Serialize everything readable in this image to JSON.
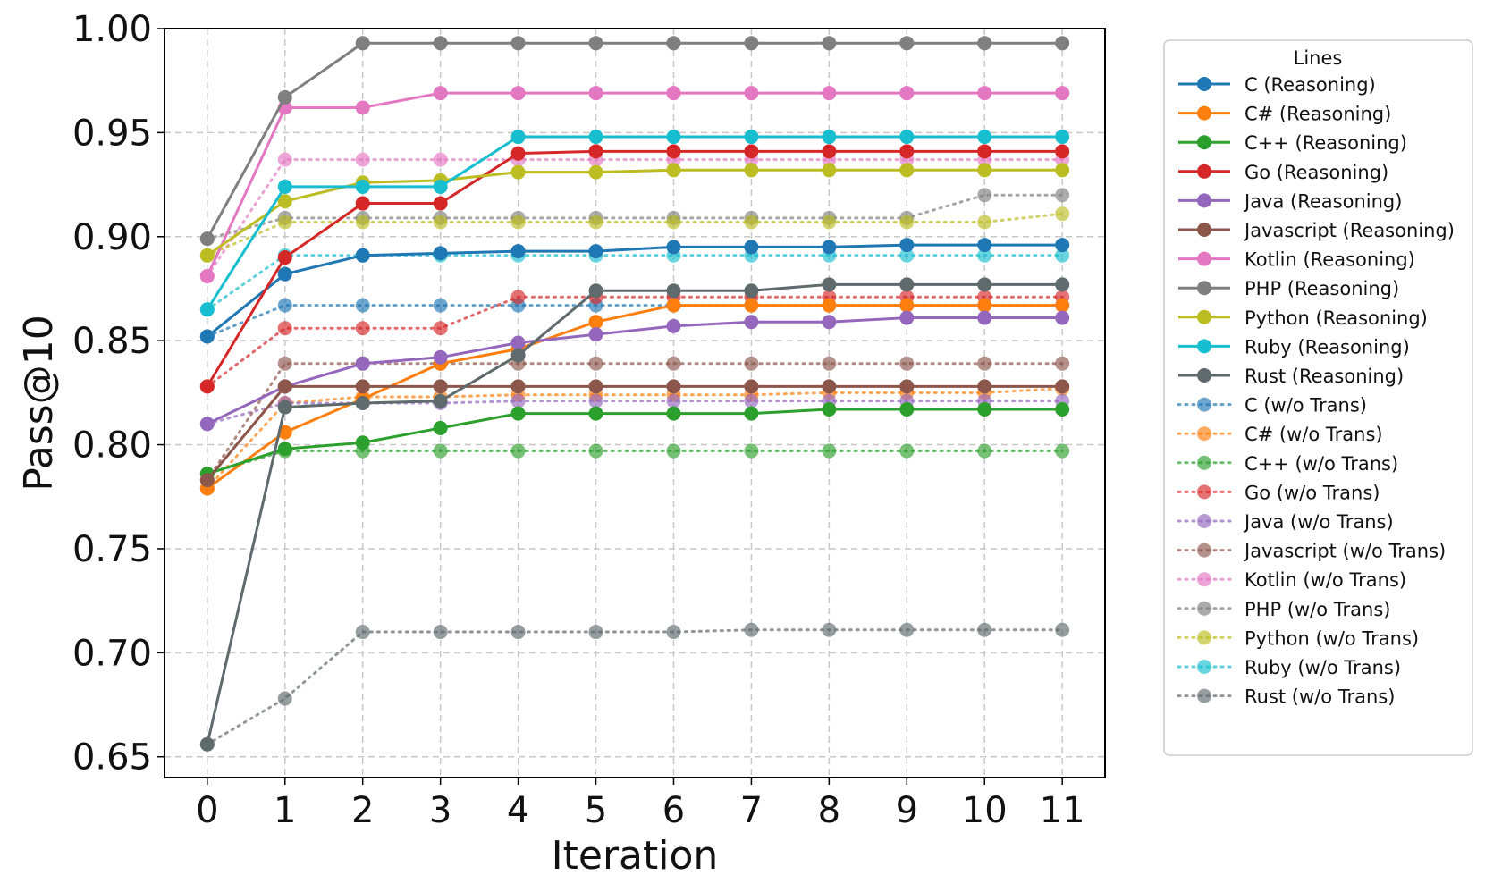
{
  "chart_data": {
    "type": "line",
    "xlabel": "Iteration",
    "ylabel": "Pass@10",
    "x": [
      0,
      1,
      2,
      3,
      4,
      5,
      6,
      7,
      8,
      9,
      10,
      11
    ],
    "xticks": [
      "0",
      "1",
      "2",
      "3",
      "4",
      "5",
      "6",
      "7",
      "8",
      "9",
      "10",
      "11"
    ],
    "yticks": [
      "0.65",
      "0.70",
      "0.75",
      "0.80",
      "0.85",
      "0.90",
      "0.95",
      "1.00"
    ],
    "ylim": [
      0.64,
      1.0
    ],
    "xlim": [
      -0.55,
      11.55
    ],
    "grid": true,
    "legend_title": "Lines",
    "legend_position": "outside-right",
    "series": [
      {
        "name": "C (Reasoning)",
        "color": "#1f77b4",
        "style": "solid",
        "values": [
          0.852,
          0.882,
          0.891,
          0.892,
          0.893,
          0.893,
          0.895,
          0.895,
          0.895,
          0.896,
          0.896,
          0.896
        ]
      },
      {
        "name": "C# (Reasoning)",
        "color": "#ff7f0e",
        "style": "solid",
        "values": [
          0.779,
          0.806,
          0.822,
          0.839,
          0.846,
          0.859,
          0.867,
          0.867,
          0.867,
          0.867,
          0.867,
          0.867
        ]
      },
      {
        "name": "C++ (Reasoning)",
        "color": "#2ca02c",
        "style": "solid",
        "values": [
          0.786,
          0.798,
          0.801,
          0.808,
          0.815,
          0.815,
          0.815,
          0.815,
          0.817,
          0.817,
          0.817,
          0.817
        ]
      },
      {
        "name": "Go (Reasoning)",
        "color": "#d62728",
        "style": "solid",
        "values": [
          0.828,
          0.89,
          0.916,
          0.916,
          0.94,
          0.941,
          0.941,
          0.941,
          0.941,
          0.941,
          0.941,
          0.941
        ]
      },
      {
        "name": "Java (Reasoning)",
        "color": "#9467bd",
        "style": "solid",
        "values": [
          0.81,
          0.828,
          0.839,
          0.842,
          0.849,
          0.853,
          0.857,
          0.859,
          0.859,
          0.861,
          0.861,
          0.861
        ]
      },
      {
        "name": "Javascript (Reasoning)",
        "color": "#8c564b",
        "style": "solid",
        "values": [
          0.783,
          0.828,
          0.828,
          0.828,
          0.828,
          0.828,
          0.828,
          0.828,
          0.828,
          0.828,
          0.828,
          0.828
        ]
      },
      {
        "name": "Kotlin (Reasoning)",
        "color": "#e377c2",
        "style": "solid",
        "values": [
          0.881,
          0.962,
          0.962,
          0.969,
          0.969,
          0.969,
          0.969,
          0.969,
          0.969,
          0.969,
          0.969,
          0.969
        ]
      },
      {
        "name": "PHP (Reasoning)",
        "color": "#7f7f7f",
        "style": "solid",
        "values": [
          0.899,
          0.967,
          0.993,
          0.993,
          0.993,
          0.993,
          0.993,
          0.993,
          0.993,
          0.993,
          0.993,
          0.993
        ]
      },
      {
        "name": "Python (Reasoning)",
        "color": "#bcbd22",
        "style": "solid",
        "values": [
          0.891,
          0.917,
          0.926,
          0.927,
          0.931,
          0.931,
          0.932,
          0.932,
          0.932,
          0.932,
          0.932,
          0.932
        ]
      },
      {
        "name": "Ruby (Reasoning)",
        "color": "#17becf",
        "style": "solid",
        "values": [
          0.865,
          0.924,
          0.924,
          0.924,
          0.948,
          0.948,
          0.948,
          0.948,
          0.948,
          0.948,
          0.948,
          0.948
        ]
      },
      {
        "name": "Rust (Reasoning)",
        "color": "#5f6a6d",
        "style": "solid",
        "values": [
          0.656,
          0.818,
          0.82,
          0.821,
          0.843,
          0.874,
          0.874,
          0.874,
          0.877,
          0.877,
          0.877,
          0.877
        ]
      },
      {
        "name": "C (w/o Trans)",
        "color": "#1f77b4",
        "style": "dotted",
        "values": [
          0.852,
          0.867,
          0.867,
          0.867,
          0.867,
          0.867,
          0.867,
          0.867,
          0.867,
          0.867,
          0.867,
          0.867
        ]
      },
      {
        "name": "C# (w/o Trans)",
        "color": "#ff7f0e",
        "style": "dotted",
        "values": [
          0.779,
          0.82,
          0.823,
          0.823,
          0.824,
          0.824,
          0.824,
          0.824,
          0.825,
          0.825,
          0.825,
          0.827
        ]
      },
      {
        "name": "C++ (w/o Trans)",
        "color": "#2ca02c",
        "style": "dotted",
        "values": [
          0.786,
          0.797,
          0.797,
          0.797,
          0.797,
          0.797,
          0.797,
          0.797,
          0.797,
          0.797,
          0.797,
          0.797
        ]
      },
      {
        "name": "Go (w/o Trans)",
        "color": "#d62728",
        "style": "dotted",
        "values": [
          0.828,
          0.856,
          0.856,
          0.856,
          0.871,
          0.871,
          0.871,
          0.871,
          0.871,
          0.871,
          0.871,
          0.871
        ]
      },
      {
        "name": "Java (w/o Trans)",
        "color": "#9467bd",
        "style": "dotted",
        "values": [
          0.81,
          0.82,
          0.82,
          0.82,
          0.821,
          0.821,
          0.821,
          0.821,
          0.821,
          0.821,
          0.821,
          0.821
        ]
      },
      {
        "name": "Javascript (w/o Trans)",
        "color": "#8c564b",
        "style": "dotted",
        "values": [
          0.783,
          0.839,
          0.839,
          0.839,
          0.839,
          0.839,
          0.839,
          0.839,
          0.839,
          0.839,
          0.839,
          0.839
        ]
      },
      {
        "name": "Kotlin (w/o Trans)",
        "color": "#e377c2",
        "style": "dotted",
        "values": [
          0.881,
          0.937,
          0.937,
          0.937,
          0.937,
          0.937,
          0.937,
          0.937,
          0.937,
          0.937,
          0.937,
          0.937
        ]
      },
      {
        "name": "PHP (w/o Trans)",
        "color": "#7f7f7f",
        "style": "dotted",
        "values": [
          0.899,
          0.909,
          0.909,
          0.909,
          0.909,
          0.909,
          0.909,
          0.909,
          0.909,
          0.909,
          0.92,
          0.92
        ]
      },
      {
        "name": "Python (w/o Trans)",
        "color": "#bcbd22",
        "style": "dotted",
        "values": [
          0.891,
          0.907,
          0.907,
          0.907,
          0.907,
          0.907,
          0.907,
          0.907,
          0.907,
          0.907,
          0.907,
          0.911
        ]
      },
      {
        "name": "Ruby (w/o Trans)",
        "color": "#17becf",
        "style": "dotted",
        "values": [
          0.865,
          0.891,
          0.891,
          0.891,
          0.891,
          0.891,
          0.891,
          0.891,
          0.891,
          0.891,
          0.891,
          0.891
        ]
      },
      {
        "name": "Rust (w/o Trans)",
        "color": "#5f6a6d",
        "style": "dotted",
        "values": [
          0.656,
          0.678,
          0.71,
          0.71,
          0.71,
          0.71,
          0.71,
          0.711,
          0.711,
          0.711,
          0.711,
          0.711
        ]
      }
    ]
  }
}
